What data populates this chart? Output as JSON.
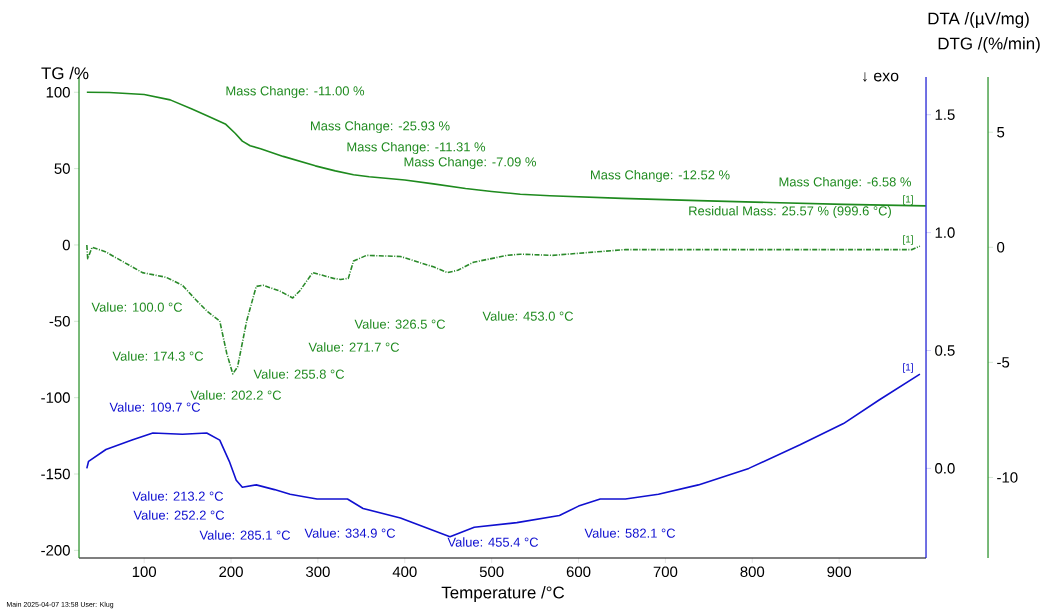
{
  "chart_data": {
    "type": "line",
    "xlabel": "Temperature /°C",
    "ylabel": "TG /%",
    "y2label": "DTA /(µV/mg)",
    "y3label": "DTG /(%/min)",
    "xlim": [
      25,
      1000
    ],
    "xticks": [
      100,
      200,
      300,
      400,
      500,
      600,
      700,
      800,
      900
    ],
    "ylim": [
      -205,
      110
    ],
    "yticks": [
      -200,
      -150,
      -100,
      -50,
      0,
      50,
      100
    ],
    "y2lim": [
      -0.38,
      1.66
    ],
    "y2ticks": [
      {
        "value": 0,
        "label": "0.0"
      },
      {
        "value": 0.5,
        "label": "0.5"
      },
      {
        "value": 1,
        "label": "1.0"
      },
      {
        "value": 1.5,
        "label": "1.5"
      }
    ],
    "y3lim": [
      -13.5,
      7.4
    ],
    "y3ticks": [
      -10,
      -5,
      0,
      5
    ],
    "series": [
      {
        "color": "#1e8a1e",
        "line_style": "solid",
        "x": [
          34,
          60,
          100,
          130,
          155,
          175,
          194,
          205,
          213,
          222,
          234,
          260,
          297,
          320,
          341,
          359,
          400,
          433,
          470,
          500,
          533,
          567,
          650,
          738,
          820,
          905,
          999.6
        ],
        "values": [
          100,
          99.8,
          98.5,
          95,
          89,
          84,
          79,
          73,
          68,
          65,
          63,
          58,
          51.8,
          48.5,
          46,
          44.7,
          42.5,
          40,
          37,
          35,
          33.2,
          32.2,
          30.5,
          29,
          27.8,
          26.6,
          25.6
        ]
      },
      {
        "axis": "y3",
        "color": "#2a8a2a",
        "line_style": "dashed",
        "x": [
          34,
          35,
          40,
          56,
          65,
          98,
          125,
          144,
          160,
          173,
          187,
          195,
          202,
          207.5,
          218,
          229,
          237,
          256,
          271,
          279,
          294,
          318,
          326,
          335,
          341,
          356,
          395,
          433,
          449,
          461,
          479,
          518,
          533,
          570,
          654,
          821,
          984,
          993
        ],
        "values": [
          0.1,
          -0.5,
          0,
          -0.2,
          -0.4,
          -1.1,
          -1.3,
          -1.65,
          -2.3,
          -2.8,
          -3.2,
          -4.6,
          -5.5,
          -5.2,
          -3.2,
          -1.7,
          -1.65,
          -1.9,
          -2.2,
          -1.9,
          -1.1,
          -1.35,
          -1.4,
          -1.35,
          -0.6,
          -0.35,
          -0.4,
          -0.85,
          -1.1,
          -1,
          -0.65,
          -0.35,
          -0.3,
          -0.35,
          -0.1,
          -0.1,
          -0.1,
          0.05
        ]
      },
      {
        "axis": "y2",
        "color": "#1010d0",
        "line_style": "solid",
        "x": [
          34,
          36,
          56,
          86,
          110,
          144,
          172,
          187,
          198,
          206,
          213,
          229,
          250,
          268,
          284,
          299,
          334,
          352,
          395,
          452,
          480,
          529,
          578,
          600,
          625,
          654,
          692,
          738,
          796,
          855,
          905,
          946,
          993
        ],
        "values": [
          0,
          0.03,
          0.08,
          0.12,
          0.15,
          0.145,
          0.15,
          0.12,
          0.03,
          -0.05,
          -0.08,
          -0.07,
          -0.09,
          -0.11,
          -0.12,
          -0.13,
          -0.13,
          -0.17,
          -0.21,
          -0.29,
          -0.25,
          -0.23,
          -0.2,
          -0.16,
          -0.13,
          -0.13,
          -0.11,
          -0.07,
          0,
          0.1,
          0.19,
          0.29,
          0.4
        ]
      }
    ],
    "annotations": [
      "Mass Change: -11.00 %",
      "Mass Change: -25.93 %",
      "Mass Change: -11.31 %",
      "Mass Change: -7.09 %",
      "Mass Change: -12.52 %",
      "Mass Change: -6.58 %",
      "Residual Mass: 25.57 % (999.6 °C)",
      "Value: 100.0 °C",
      "Value: 174.3 °C",
      "Value: 202.2 °C",
      "Value: 255.8 °C",
      "Value: 271.7 °C",
      "Value: 326.5 °C",
      "Value: 453.0 °C",
      "Value: 109.7 °C",
      "Value: 213.2 °C",
      "Value: 252.2 °C",
      "Value: 285.1 °C",
      "Value: 334.9 °C",
      "Value: 455.4 °C",
      "Value: 582.1 °C",
      "[1]",
      "[1]",
      "[1]",
      "↓ exo",
      "Main   2025-04-07 13:58   User: Klug"
    ]
  }
}
